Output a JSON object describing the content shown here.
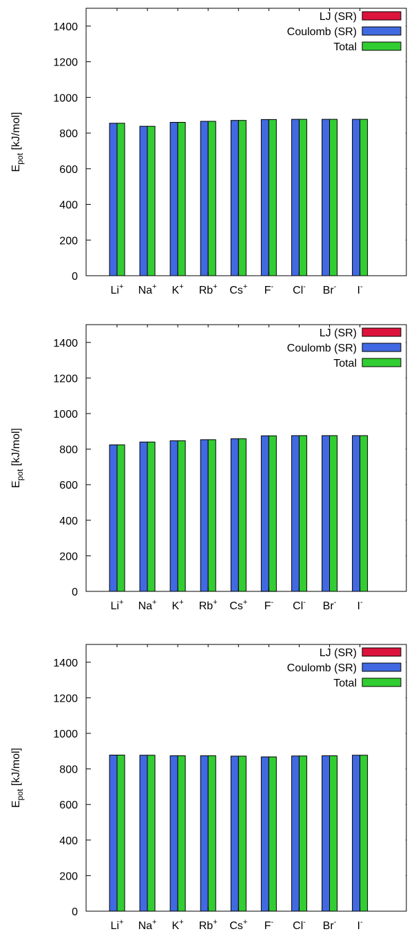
{
  "chart_data": [
    {
      "type": "bar",
      "categories": [
        "Li⁺",
        "Na⁺",
        "K⁺",
        "Rb⁺",
        "Cs⁺",
        "F⁻",
        "Cl⁻",
        "Br⁻",
        "I⁻"
      ],
      "category_labels": [
        {
          "base": "Li",
          "sup": "+"
        },
        {
          "base": "Na",
          "sup": "+"
        },
        {
          "base": "K",
          "sup": "+"
        },
        {
          "base": "Rb",
          "sup": "+"
        },
        {
          "base": "Cs",
          "sup": "+"
        },
        {
          "base": "F",
          "sup": "-"
        },
        {
          "base": "Cl",
          "sup": "-"
        },
        {
          "base": "Br",
          "sup": "-"
        },
        {
          "base": "I",
          "sup": "-"
        }
      ],
      "series": [
        {
          "name": "LJ (SR)",
          "color": "#dc143c",
          "values": [
            0,
            0,
            0,
            0,
            0,
            0,
            0,
            0,
            0
          ]
        },
        {
          "name": "Coulomb (SR)",
          "color": "#4169e1",
          "values": [
            855,
            838,
            860,
            866,
            871,
            876,
            877,
            877,
            877
          ]
        },
        {
          "name": "Total",
          "color": "#32cd32",
          "values": [
            855,
            838,
            860,
            866,
            871,
            876,
            877,
            877,
            877
          ]
        }
      ],
      "ylabel": {
        "base": "E",
        "sub": "pot",
        "rest": " [kJ/mol]"
      },
      "ylim": [
        0,
        1500
      ],
      "yticks": [
        "0",
        "200",
        "400",
        "600",
        "800",
        "1000",
        "1200",
        "1400"
      ],
      "grid": false,
      "legend_position": "top-right"
    },
    {
      "type": "bar",
      "categories": [
        "Li⁺",
        "Na⁺",
        "K⁺",
        "Rb⁺",
        "Cs⁺",
        "F⁻",
        "Cl⁻",
        "Br⁻",
        "I⁻"
      ],
      "category_labels": [
        {
          "base": "Li",
          "sup": "+"
        },
        {
          "base": "Na",
          "sup": "+"
        },
        {
          "base": "K",
          "sup": "+"
        },
        {
          "base": "Rb",
          "sup": "+"
        },
        {
          "base": "Cs",
          "sup": "+"
        },
        {
          "base": "F",
          "sup": "-"
        },
        {
          "base": "Cl",
          "sup": "-"
        },
        {
          "base": "Br",
          "sup": "-"
        },
        {
          "base": "I",
          "sup": "-"
        }
      ],
      "series": [
        {
          "name": "LJ (SR)",
          "color": "#dc143c",
          "values": [
            0,
            0,
            0,
            0,
            0,
            0,
            0,
            0,
            0
          ]
        },
        {
          "name": "Coulomb (SR)",
          "color": "#4169e1",
          "values": [
            824,
            840,
            847,
            853,
            858,
            875,
            876,
            876,
            876
          ]
        },
        {
          "name": "Total",
          "color": "#32cd32",
          "values": [
            824,
            840,
            847,
            853,
            858,
            875,
            876,
            876,
            876
          ]
        }
      ],
      "ylabel": {
        "base": "E",
        "sub": "pot",
        "rest": " [kJ/mol]"
      },
      "ylim": [
        0,
        1500
      ],
      "yticks": [
        "0",
        "200",
        "400",
        "600",
        "800",
        "1000",
        "1200",
        "1400"
      ],
      "grid": false,
      "legend_position": "top-right"
    },
    {
      "type": "bar",
      "categories": [
        "Li⁺",
        "Na⁺",
        "K⁺",
        "Rb⁺",
        "Cs⁺",
        "F⁻",
        "Cl⁻",
        "Br⁻",
        "I⁻"
      ],
      "category_labels": [
        {
          "base": "Li",
          "sup": "+"
        },
        {
          "base": "Na",
          "sup": "+"
        },
        {
          "base": "K",
          "sup": "+"
        },
        {
          "base": "Rb",
          "sup": "+"
        },
        {
          "base": "Cs",
          "sup": "+"
        },
        {
          "base": "F",
          "sup": "-"
        },
        {
          "base": "Cl",
          "sup": "-"
        },
        {
          "base": "Br",
          "sup": "-"
        },
        {
          "base": "I",
          "sup": "-"
        }
      ],
      "series": [
        {
          "name": "LJ (SR)",
          "color": "#dc143c",
          "values": [
            0,
            0,
            0,
            0,
            0,
            0,
            0,
            0,
            0
          ]
        },
        {
          "name": "Coulomb (SR)",
          "color": "#4169e1",
          "values": [
            878,
            877,
            874,
            874,
            872,
            868,
            873,
            874,
            877
          ]
        },
        {
          "name": "Total",
          "color": "#32cd32",
          "values": [
            878,
            877,
            874,
            874,
            872,
            868,
            873,
            874,
            877
          ]
        }
      ],
      "ylabel": {
        "base": "E",
        "sub": "pot",
        "rest": " [kJ/mol]"
      },
      "ylim": [
        0,
        1500
      ],
      "yticks": [
        "0",
        "200",
        "400",
        "600",
        "800",
        "1000",
        "1200",
        "1400"
      ],
      "grid": false,
      "legend_position": "top-right"
    }
  ]
}
